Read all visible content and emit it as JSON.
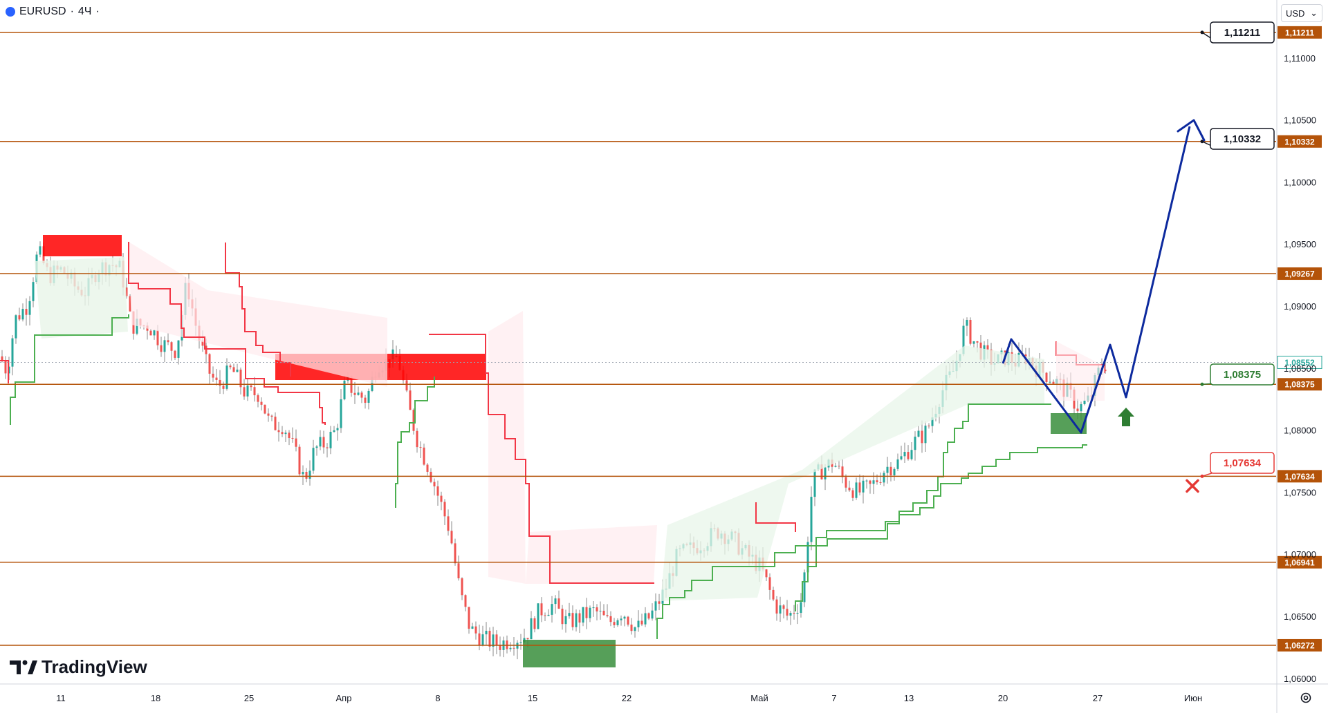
{
  "header": {
    "symbol": "EURUSD",
    "separator": "·",
    "interval": "4Ч",
    "trail": "·"
  },
  "toolbar": {
    "currency": "USD",
    "currency_caret": "⌄"
  },
  "branding": {
    "name": "TradingView"
  },
  "chart_data": {
    "type": "candlestick",
    "instrument": "EURUSD",
    "interval": "4Ч",
    "ylim": [
      1.0596,
      1.11472
    ],
    "y_ticks": [
      "1,06000",
      "1,06500",
      "1,07000",
      "1,07500",
      "1,08000",
      "1,08500",
      "1,09000",
      "1,09500",
      "1,10000",
      "1,10500",
      "1,11000"
    ],
    "x_ticks": [
      "11",
      "18",
      "25",
      "Апр",
      "8",
      "15",
      "22",
      "Май",
      "7",
      "13",
      "20",
      "27",
      "Июн"
    ],
    "current_price": {
      "label": "1,08552",
      "value": 1.08552,
      "color": "#26a69a"
    },
    "horizontal_levels": [
      {
        "label": "1,11211",
        "value": 1.11211
      },
      {
        "label": "1,10332",
        "value": 1.10332
      },
      {
        "label": "1,09267",
        "value": 1.09267
      },
      {
        "label": "1,08375",
        "value": 1.08375
      },
      {
        "label": "1,07634",
        "value": 1.07634
      },
      {
        "label": "1,06941",
        "value": 1.06941
      },
      {
        "label": "1,06272",
        "value": 1.06272
      }
    ],
    "callouts": [
      {
        "label": "1,11211",
        "value": 1.11211,
        "style": "neutral"
      },
      {
        "label": "1,10332",
        "value": 1.10332,
        "style": "neutral"
      },
      {
        "label": "1,08375",
        "value": 1.08375,
        "style": "entry"
      },
      {
        "label": "1,07634",
        "value": 1.07634,
        "style": "stop"
      }
    ],
    "zones": [
      {
        "name": "supply-top-left",
        "color": "#ff0000"
      },
      {
        "name": "supply-mid",
        "color": "#ff0000"
      },
      {
        "name": "demand-mid-low",
        "color": "#388e3c"
      },
      {
        "name": "demand-right",
        "color": "#388e3c"
      }
    ],
    "projection": {
      "color": "#0d2a9e",
      "direction": "up",
      "target": "1,10332"
    },
    "markers": {
      "buy_arrow_color": "#2e7d32",
      "stop_cross_color": "#e53935"
    },
    "colors": {
      "level": "#b45309",
      "up_candle": "#26a69a",
      "down_candle": "#ef5350",
      "trail_up": "#4caf50",
      "trail_down": "#f23645"
    }
  }
}
